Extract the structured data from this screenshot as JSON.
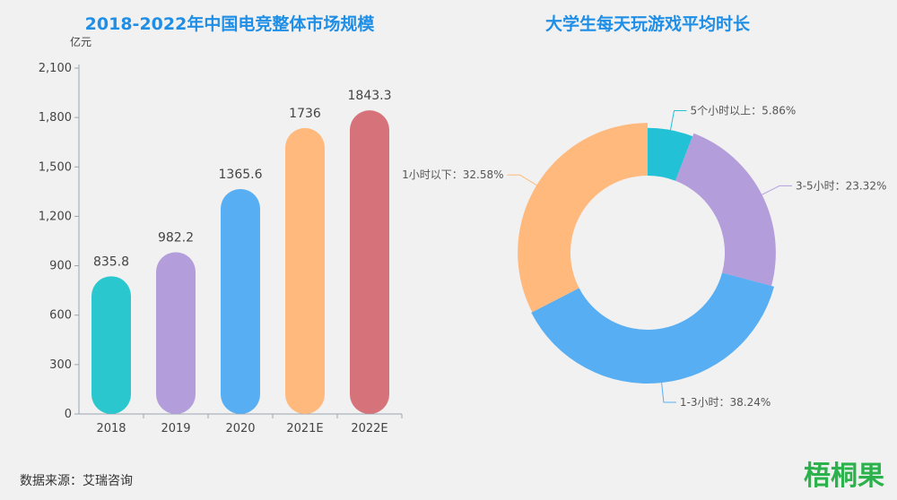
{
  "source_text": "数据来源：艾瑞咨询",
  "watermark": "梧桐果",
  "chart_data": [
    {
      "type": "bar",
      "title": "2018-2022年中国电竞整体市场规模",
      "ylabel": "亿元",
      "categories": [
        "2018",
        "2019",
        "2020",
        "2021E",
        "2022E"
      ],
      "values": [
        835.8,
        982.2,
        1365.6,
        1736,
        1843.3
      ],
      "value_labels": [
        "835.8",
        "982.2",
        "1365.6",
        "1736",
        "1843.3"
      ],
      "ylim": [
        0,
        2100
      ],
      "yticks": [
        0,
        300,
        600,
        900,
        1200,
        1500,
        1800,
        2100
      ],
      "ytick_labels": [
        "0",
        "300",
        "600",
        "900",
        "1,200",
        "1,500",
        "1,800",
        "2,100"
      ],
      "colors": [
        "#2ac8ce",
        "#b39ddb",
        "#58aef2",
        "#ffb97c",
        "#d6727a"
      ],
      "grid": false
    },
    {
      "type": "pie",
      "subtype": "rose-donut",
      "title": "大学生每天玩游戏平均时长",
      "slices": [
        {
          "label": "5个小时以上",
          "value": 5.86,
          "display": "5个小时以上：5.86%",
          "color": "#22c1d6"
        },
        {
          "label": "3-5小时",
          "value": 23.32,
          "display": "3-5小时：23.32%",
          "color": "#b39ddb"
        },
        {
          "label": "1-3小时",
          "value": 38.24,
          "display": "1-3小时：38.24%",
          "color": "#58aef2"
        },
        {
          "label": "1小时以下",
          "value": 32.58,
          "display": "1小时以下：32.58%",
          "color": "#ffb97c"
        }
      ]
    }
  ]
}
